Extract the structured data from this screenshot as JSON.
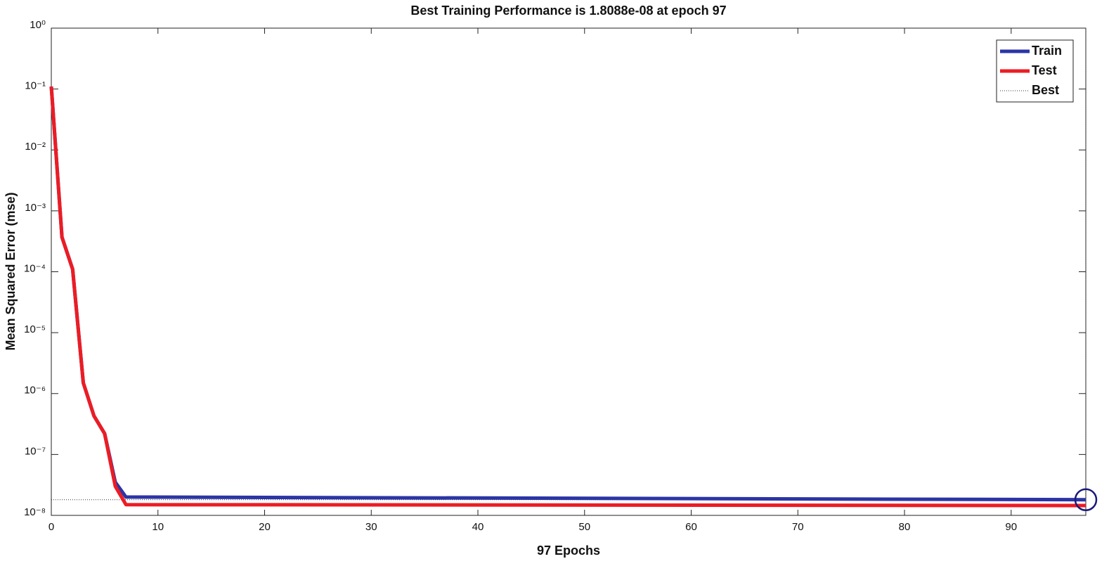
{
  "chart_data": {
    "type": "line",
    "title": "Best Training Performance is 1.8088e-08 at epoch 97",
    "x_label": "97 Epochs",
    "y_label": "Mean Squared Error  (mse)",
    "x": [
      0,
      1,
      2,
      3,
      4,
      5,
      6,
      7,
      97
    ],
    "series": [
      {
        "name": "Train",
        "color": "#2b35a6",
        "values": [
          0.11,
          0.00037,
          0.00011,
          1.5e-06,
          4.3e-07,
          2.2e-07,
          3.5e-08,
          2e-08,
          1.8088e-08
        ]
      },
      {
        "name": "Test",
        "color": "#ec1c24",
        "values": [
          0.11,
          0.00037,
          0.00011,
          1.5e-06,
          4.3e-07,
          2.2e-07,
          3e-08,
          1.5e-08,
          1.45e-08
        ]
      }
    ],
    "best": {
      "name": "Best",
      "epoch": 97,
      "value": 1.8088e-08,
      "color": "#1a1a7a"
    },
    "xlim": [
      0,
      97
    ],
    "xticks": [
      0,
      10,
      20,
      30,
      40,
      50,
      60,
      70,
      80,
      90
    ],
    "ylim": [
      1e-08,
      1
    ],
    "yscale": "log",
    "yticks": [
      {
        "value": 1e-08,
        "label": "10⁻⁸"
      },
      {
        "value": 1e-07,
        "label": "10⁻⁷"
      },
      {
        "value": 1e-06,
        "label": "10⁻⁶"
      },
      {
        "value": 1e-05,
        "label": "10⁻⁵"
      },
      {
        "value": 0.0001,
        "label": "10⁻⁴"
      },
      {
        "value": 0.001,
        "label": "10⁻³"
      },
      {
        "value": 0.01,
        "label": "10⁻²"
      },
      {
        "value": 0.1,
        "label": "10⁻¹"
      },
      {
        "value": 1,
        "label": "10⁰"
      }
    ],
    "legend": "upper-right"
  }
}
